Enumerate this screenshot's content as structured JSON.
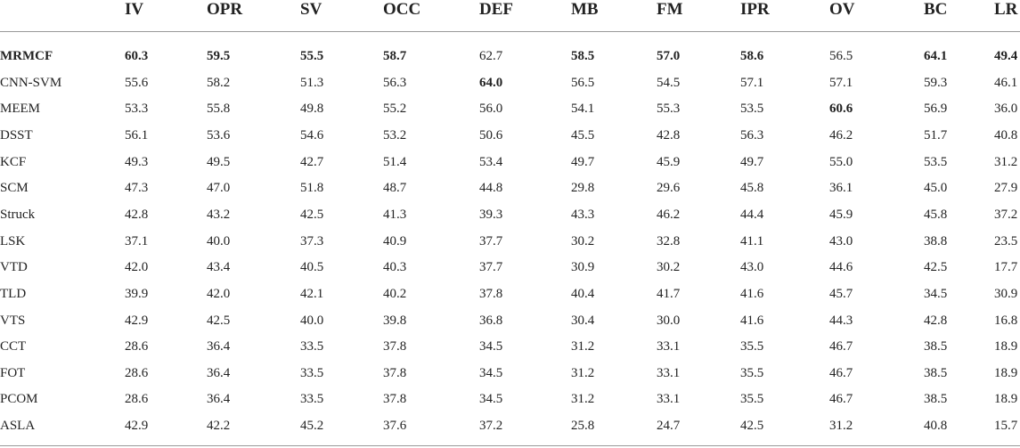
{
  "table": {
    "columns": [
      "IV",
      "OPR",
      "SV",
      "OCC",
      "DEF",
      "MB",
      "FM",
      "IPR",
      "OV",
      "BC",
      "LR"
    ],
    "rows": [
      {
        "label": "MRMCF",
        "values": [
          "60.3",
          "59.5",
          "55.5",
          "58.7",
          "62.7",
          "58.5",
          "57.0",
          "58.6",
          "56.5",
          "64.1",
          "49.4"
        ],
        "bold_label": true,
        "bold": [
          0,
          1,
          2,
          3,
          5,
          6,
          7,
          9,
          10
        ]
      },
      {
        "label": "CNN-SVM",
        "values": [
          "55.6",
          "58.2",
          "51.3",
          "56.3",
          "64.0",
          "56.5",
          "54.5",
          "57.1",
          "57.1",
          "59.3",
          "46.1"
        ],
        "bold": [
          4
        ]
      },
      {
        "label": "MEEM",
        "values": [
          "53.3",
          "55.8",
          "49.8",
          "55.2",
          "56.0",
          "54.1",
          "55.3",
          "53.5",
          "60.6",
          "56.9",
          "36.0"
        ],
        "bold": [
          8
        ]
      },
      {
        "label": "DSST",
        "values": [
          "56.1",
          "53.6",
          "54.6",
          "53.2",
          "50.6",
          "45.5",
          "42.8",
          "56.3",
          "46.2",
          "51.7",
          "40.8"
        ]
      },
      {
        "label": "KCF",
        "values": [
          "49.3",
          "49.5",
          "42.7",
          "51.4",
          "53.4",
          "49.7",
          "45.9",
          "49.7",
          "55.0",
          "53.5",
          "31.2"
        ]
      },
      {
        "label": "SCM",
        "values": [
          "47.3",
          "47.0",
          "51.8",
          "48.7",
          "44.8",
          "29.8",
          "29.6",
          "45.8",
          "36.1",
          "45.0",
          "27.9"
        ]
      },
      {
        "label": "Struck",
        "values": [
          "42.8",
          "43.2",
          "42.5",
          "41.3",
          "39.3",
          "43.3",
          "46.2",
          "44.4",
          "45.9",
          "45.8",
          "37.2"
        ]
      },
      {
        "label": "LSK",
        "values": [
          "37.1",
          "40.0",
          "37.3",
          "40.9",
          "37.7",
          "30.2",
          "32.8",
          "41.1",
          "43.0",
          "38.8",
          "23.5"
        ]
      },
      {
        "label": "VTD",
        "values": [
          "42.0",
          "43.4",
          "40.5",
          "40.3",
          "37.7",
          "30.9",
          "30.2",
          "43.0",
          "44.6",
          "42.5",
          "17.7"
        ]
      },
      {
        "label": "TLD",
        "values": [
          "39.9",
          "42.0",
          "42.1",
          "40.2",
          "37.8",
          "40.4",
          "41.7",
          "41.6",
          "45.7",
          "34.5",
          "30.9"
        ]
      },
      {
        "label": "VTS",
        "values": [
          "42.9",
          "42.5",
          "40.0",
          "39.8",
          "36.8",
          "30.4",
          "30.0",
          "41.6",
          "44.3",
          "42.8",
          "16.8"
        ]
      },
      {
        "label": "CCT",
        "values": [
          "28.6",
          "36.4",
          "33.5",
          "37.8",
          "34.5",
          "31.2",
          "33.1",
          "35.5",
          "46.7",
          "38.5",
          "18.9"
        ]
      },
      {
        "label": "FOT",
        "values": [
          "28.6",
          "36.4",
          "33.5",
          "37.8",
          "34.5",
          "31.2",
          "33.1",
          "35.5",
          "46.7",
          "38.5",
          "18.9"
        ]
      },
      {
        "label": "PCOM",
        "values": [
          "28.6",
          "36.4",
          "33.5",
          "37.8",
          "34.5",
          "31.2",
          "33.1",
          "35.5",
          "46.7",
          "38.5",
          "18.9"
        ]
      },
      {
        "label": "ASLA",
        "values": [
          "42.9",
          "42.2",
          "45.2",
          "37.6",
          "37.2",
          "25.8",
          "24.7",
          "42.5",
          "31.2",
          "40.8",
          "15.7"
        ]
      }
    ]
  }
}
